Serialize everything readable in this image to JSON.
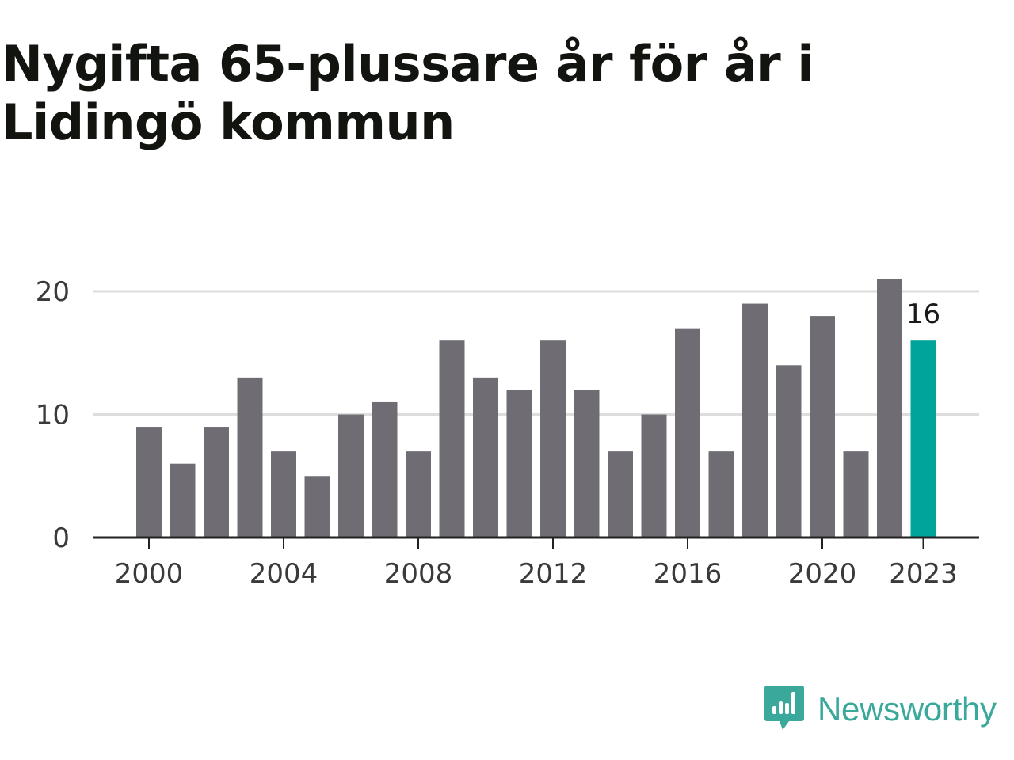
{
  "title": "Nygifta 65-plussare år för år i Lidingö kommun",
  "chart_data": {
    "type": "bar",
    "categories": [
      2000,
      2001,
      2002,
      2003,
      2004,
      2005,
      2006,
      2007,
      2008,
      2009,
      2010,
      2011,
      2012,
      2013,
      2014,
      2015,
      2016,
      2017,
      2018,
      2019,
      2020,
      2021,
      2022,
      2023
    ],
    "values": [
      9,
      6,
      9,
      13,
      7,
      5,
      10,
      11,
      7,
      16,
      13,
      12,
      16,
      12,
      7,
      10,
      17,
      7,
      19,
      14,
      18,
      7,
      21,
      16
    ],
    "x_tick_labels": [
      "2000",
      "2004",
      "2008",
      "2012",
      "2016",
      "2020",
      "2023"
    ],
    "y_tick_labels": [
      "0",
      "10",
      "20"
    ],
    "y_ticks": [
      0,
      10,
      20
    ],
    "ylim": [
      0,
      20
    ],
    "grid": true,
    "highlight": {
      "category": 2023,
      "label": "16"
    },
    "colors": {
      "bar": "#6f6d73",
      "highlight": "#00a49a",
      "grid": "#dddddd",
      "axis": "#222222"
    }
  },
  "brand": {
    "name": "Newsworthy",
    "icon": "newsworthy-logo-icon",
    "color": "#3aa89a"
  }
}
